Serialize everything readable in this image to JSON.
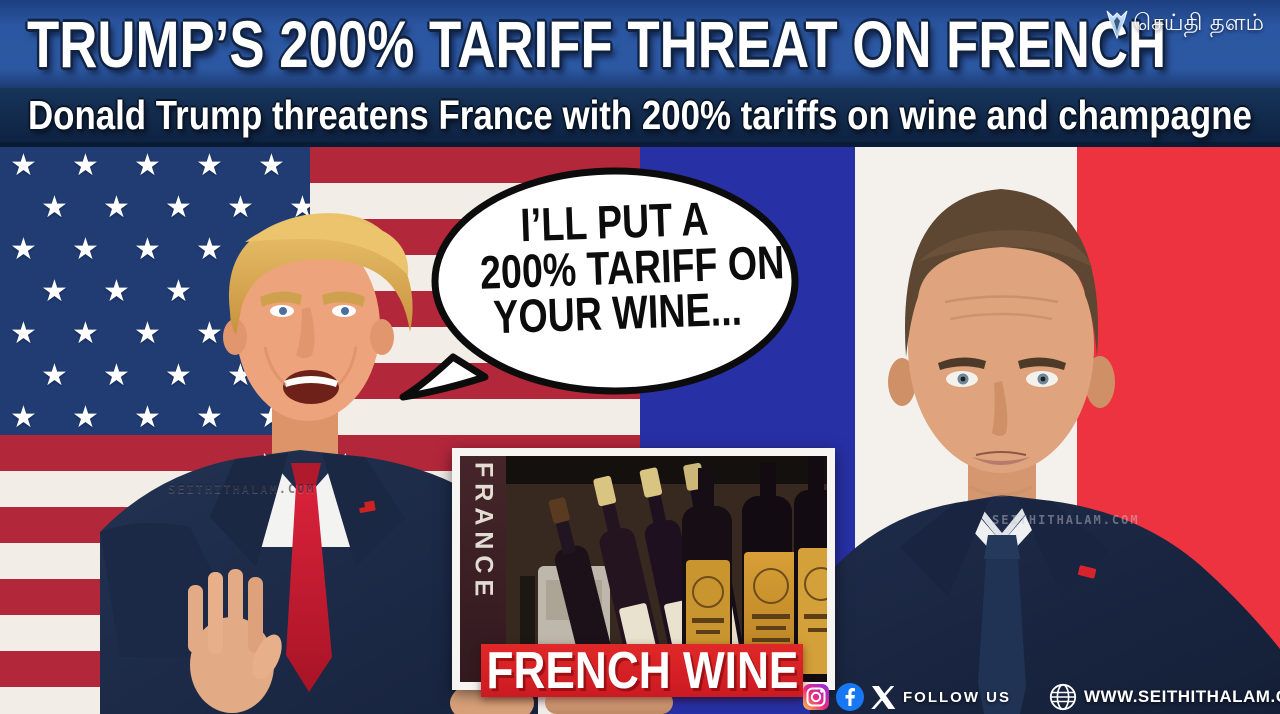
{
  "brand": {
    "name": "செய்தி தளம்",
    "icon": "fox-logo-icon"
  },
  "header": {
    "headline": "TRUMP’S 200% TARIFF THREAT ON FRENCH",
    "subheadline": "Donald Trump threatens France with 200% tariffs on wine and champagne"
  },
  "speech_bubble": {
    "speaker": "Donald Trump",
    "line1": "I’LL PUT A",
    "line2": "200% TARIFF ON",
    "line3": "YOUR WINE..."
  },
  "wine_box": {
    "vertical_label": "FRANCE",
    "banner_label": "FRENCH WINE"
  },
  "watermarks": {
    "left": "SEITHITHALAM.COM",
    "right": "SEITHITHALAM.COM"
  },
  "footer": {
    "follow_label": "FOLLOW US",
    "website": "WWW.SEITHITHALAM.COM",
    "icons": [
      "instagram-icon",
      "facebook-icon",
      "x-icon",
      "globe-icon"
    ]
  },
  "colors": {
    "banner_blue": "#2b57a2",
    "subbanner_navy": "#122a4c",
    "us_canton_blue": "#203c72",
    "us_stripe_red": "#b3273a",
    "france_blue": "#2730a5",
    "france_red": "#ee3340",
    "wine_banner_red": "#d71f27",
    "facebook_blue": "#1877f2"
  }
}
